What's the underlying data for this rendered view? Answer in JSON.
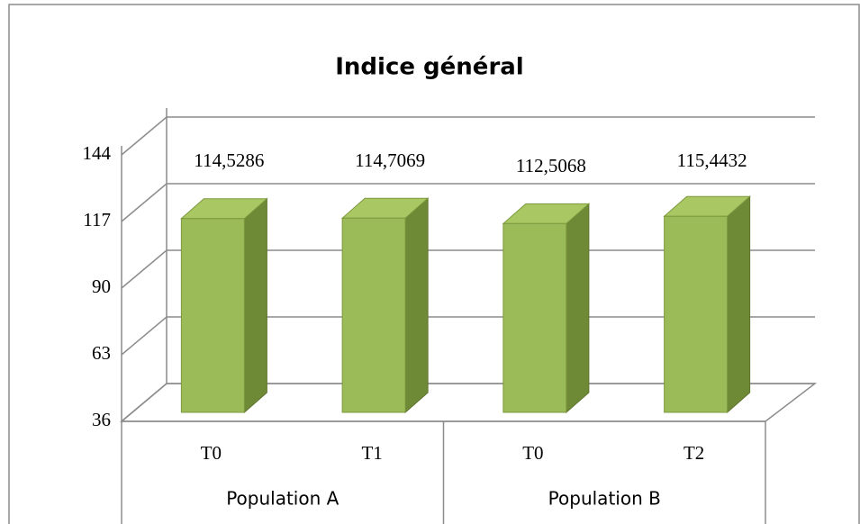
{
  "chart_data": {
    "type": "bar3d",
    "title": "Indice général",
    "categories": [
      "T0",
      "T1",
      "T0",
      "T2"
    ],
    "groups": [
      "Population A",
      "Population B"
    ],
    "values": [
      114.5286,
      114.7069,
      112.5068,
      115.4432
    ],
    "value_labels": [
      "114,5286",
      "114,7069",
      "112,5068",
      "115,4432"
    ],
    "color": "#9bbb59",
    "ylim": [
      36,
      144
    ],
    "yticks": [
      36,
      63,
      90,
      117,
      144
    ],
    "grid": true
  }
}
